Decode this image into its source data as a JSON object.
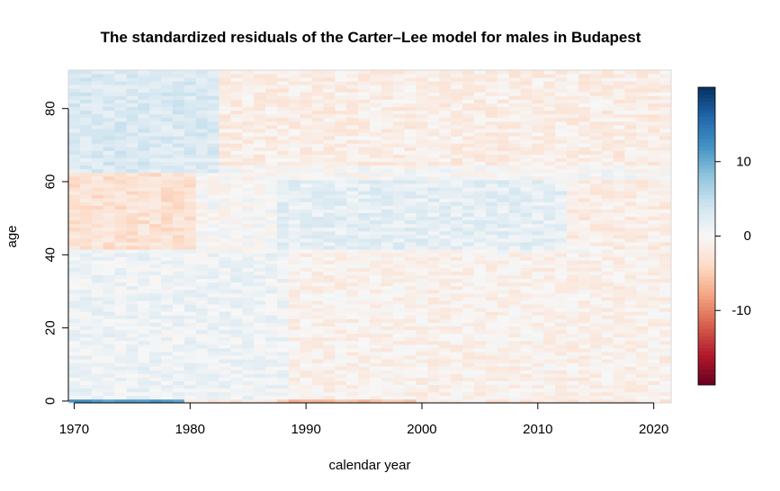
{
  "chart_data": {
    "type": "heatmap",
    "title": "The standardized residuals of the Carter–Lee model for males in Budapest",
    "xlabel": "calendar year",
    "ylabel": "age",
    "x_range": [
      1970,
      2021
    ],
    "y_range": [
      0,
      90
    ],
    "xticks": [
      "1970",
      "1980",
      "1990",
      "2000",
      "2010",
      "2020"
    ],
    "yticks": [
      "0",
      "20",
      "40",
      "60",
      "80"
    ],
    "colorbar": {
      "range": [
        -20,
        20
      ],
      "ticks": [
        "10",
        "0",
        "-10"
      ],
      "colors": [
        "#67001f",
        "#b2182b",
        "#d6604d",
        "#f4a582",
        "#fddbc7",
        "#f7f7f7",
        "#d1e5f0",
        "#92c5de",
        "#4393c3",
        "#2166ac",
        "#053061"
      ]
    },
    "residual_regions": [
      {
        "years": [
          1970,
          1979
        ],
        "ages": [
          0,
          0
        ],
        "value": 12
      },
      {
        "years": [
          1980,
          1987
        ],
        "ages": [
          0,
          0
        ],
        "value": -2
      },
      {
        "years": [
          1988,
          1999
        ],
        "ages": [
          0,
          0
        ],
        "value": -6
      },
      {
        "years": [
          2000,
          2021
        ],
        "ages": [
          0,
          0
        ],
        "value": -2
      },
      {
        "years": [
          1970,
          1980
        ],
        "ages": [
          42,
          62
        ],
        "value": -3
      },
      {
        "years": [
          1970,
          1982
        ],
        "ages": [
          63,
          90
        ],
        "value": 3
      },
      {
        "years": [
          1983,
          2021
        ],
        "ages": [
          65,
          90
        ],
        "value": -1.5
      },
      {
        "years": [
          1988,
          2012
        ],
        "ages": [
          42,
          60
        ],
        "value": 2
      },
      {
        "years": [
          2013,
          2021
        ],
        "ages": [
          42,
          60
        ],
        "value": -1.5
      },
      {
        "years": [
          1970,
          1988
        ],
        "ages": [
          1,
          40
        ],
        "value": 1
      },
      {
        "years": [
          1989,
          2021
        ],
        "ages": [
          1,
          40
        ],
        "value": -1
      }
    ]
  }
}
